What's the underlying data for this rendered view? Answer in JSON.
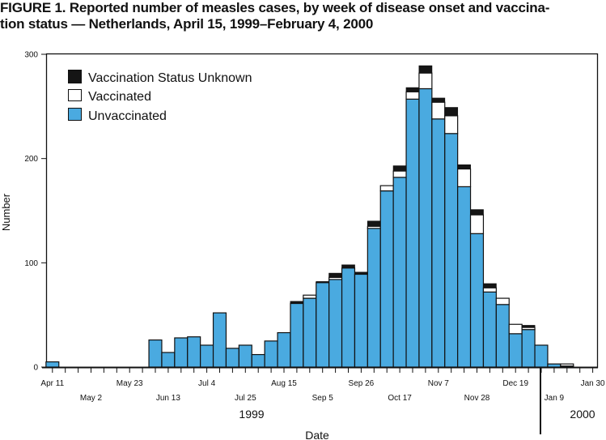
{
  "chart_data": {
    "type": "bar",
    "stacked": true,
    "title_line1": "FIGURE 1. Reported number of measles cases, by week of disease onset and vaccina-",
    "title_line2": "tion status — Netherlands, April 15, 1999–February 4, 2000",
    "xlabel": "Date",
    "ylabel": "Number",
    "ylim": [
      0,
      300
    ],
    "yticks": [
      "0",
      "100",
      "200",
      "300"
    ],
    "xtick_labels": [
      "Apr 11",
      "May 2",
      "May 23",
      "Jun 13",
      "Jul 4",
      "Jul 25",
      "Aug 15",
      "Sep 5",
      "Sep 26",
      "Oct 17",
      "Nov 7",
      "Nov 28",
      "Dec 19",
      "Jan 9",
      "Jan 30"
    ],
    "year_labels": [
      "1999",
      "2000"
    ],
    "legend_position": "top-left",
    "colors": {
      "unvaccinated": "#4aaae0",
      "vaccinated": "#ffffff",
      "unknown": "#151515"
    },
    "series": [
      {
        "name": "Unvaccinated",
        "values": [
          5,
          0,
          0,
          0,
          0,
          0,
          0,
          0,
          26,
          14,
          28,
          29,
          21,
          52,
          18,
          21,
          12,
          25,
          33,
          61,
          66,
          81,
          84,
          95,
          89,
          133,
          169,
          182,
          257,
          267,
          238,
          224,
          173,
          128,
          72,
          60,
          32,
          36,
          21,
          3,
          1,
          0,
          0
        ]
      },
      {
        "name": "Vaccinated",
        "values": [
          0,
          0,
          0,
          0,
          0,
          0,
          0,
          0,
          0,
          0,
          0,
          0,
          0,
          0,
          0,
          0,
          0,
          0,
          0,
          0,
          3,
          0,
          2,
          0,
          0,
          2,
          5,
          6,
          7,
          15,
          16,
          17,
          17,
          18,
          4,
          6,
          9,
          2,
          0,
          0,
          2,
          0,
          0
        ]
      },
      {
        "name": "Vaccination Status Unknown",
        "values": [
          0,
          0,
          0,
          0,
          0,
          0,
          0,
          0,
          0,
          0,
          0,
          0,
          0,
          0,
          0,
          0,
          0,
          0,
          0,
          2,
          0,
          1,
          4,
          3,
          2,
          5,
          0,
          5,
          4,
          7,
          4,
          8,
          4,
          5,
          4,
          0,
          0,
          2,
          0,
          0,
          0,
          0,
          0
        ]
      }
    ]
  }
}
